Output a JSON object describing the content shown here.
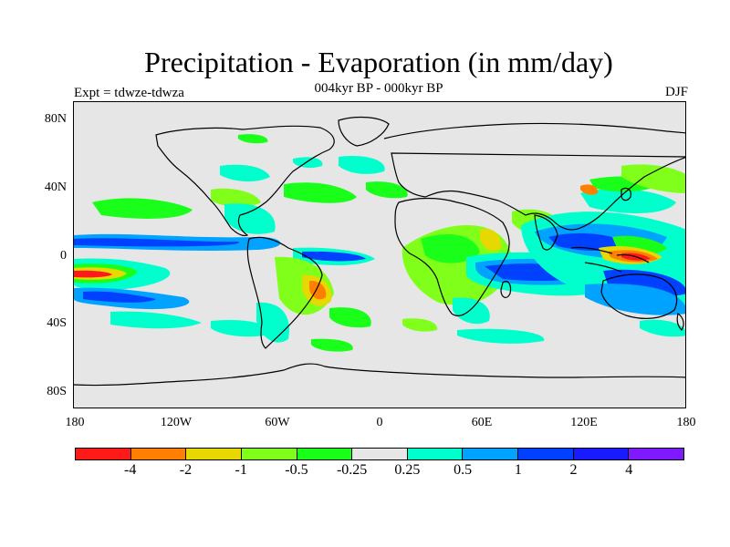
{
  "title": "Precipitation - Evaporation (in mm/day)",
  "subtitle": "004kyr BP - 000kyr BP",
  "left_label": "Expt = tdwze-tdwza",
  "right_label": "DJF",
  "y_axis_labels": [
    "80N",
    "40N",
    "0",
    "40S",
    "80S"
  ],
  "x_axis_labels": [
    "180",
    "120W",
    "60W",
    "0",
    "60E",
    "120E",
    "180"
  ],
  "colorbar": {
    "colors": [
      "#ff1a1a",
      "#ff8000",
      "#e6d800",
      "#7fff1a",
      "#1aff1a",
      "#e6e6e6",
      "#00ffcc",
      "#00a3ff",
      "#0040ff",
      "#1a1aff",
      "#7f1aff"
    ],
    "labels": [
      "-4",
      "-2",
      "-1",
      "-0.5",
      "-0.25",
      "0.25",
      "0.5",
      "1",
      "2",
      "4"
    ]
  },
  "map": {
    "ocean_color": "#e6e6e6",
    "coastline_color": "#000000",
    "features": "colour-filled precipitation minus evaporation anomaly field with continent outlines"
  }
}
